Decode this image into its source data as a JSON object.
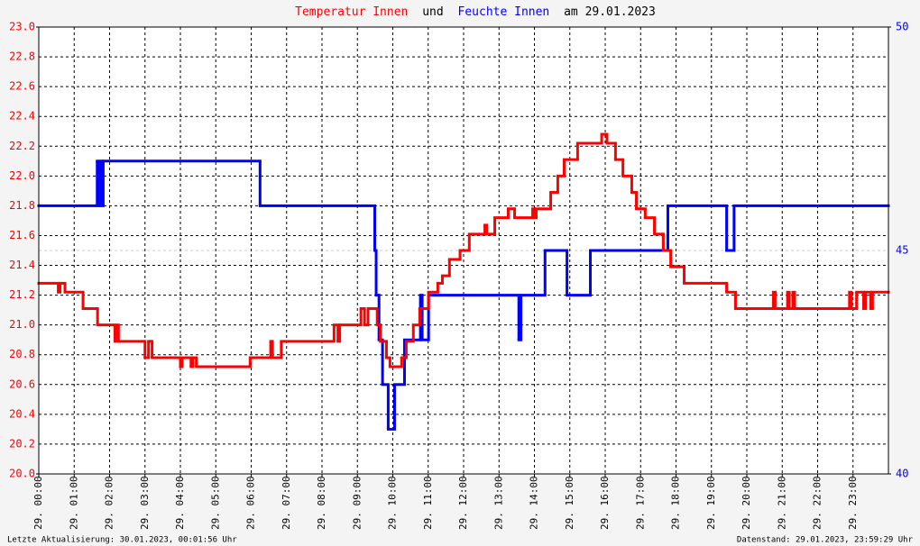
{
  "chart_data": {
    "type": "line",
    "step": "post",
    "title_joiner": "und",
    "title_date": "am 29.01.2023",
    "footer_left": "Letzte Aktualisierung: 30.01.2023, 00:01:56 Uhr",
    "footer_right": "Datenstand: 29.01.2023, 23:59:29 Uhr",
    "grid": true,
    "xlim": [
      0,
      24
    ],
    "xticks": [
      {
        "value": 0,
        "label": "29. 00:00"
      },
      {
        "value": 1,
        "label": "29. 01:00"
      },
      {
        "value": 2,
        "label": "29. 02:00"
      },
      {
        "value": 3,
        "label": "29. 03:00"
      },
      {
        "value": 4,
        "label": "29. 04:00"
      },
      {
        "value": 5,
        "label": "29. 05:00"
      },
      {
        "value": 6,
        "label": "29. 06:00"
      },
      {
        "value": 7,
        "label": "29. 07:00"
      },
      {
        "value": 8,
        "label": "29. 08:00"
      },
      {
        "value": 9,
        "label": "29. 09:00"
      },
      {
        "value": 10,
        "label": "29. 10:00"
      },
      {
        "value": 11,
        "label": "29. 11:00"
      },
      {
        "value": 12,
        "label": "29. 12:00"
      },
      {
        "value": 13,
        "label": "29. 13:00"
      },
      {
        "value": 14,
        "label": "29. 14:00"
      },
      {
        "value": 15,
        "label": "29. 15:00"
      },
      {
        "value": 16,
        "label": "29. 16:00"
      },
      {
        "value": 17,
        "label": "29. 17:00"
      },
      {
        "value": 18,
        "label": "29. 18:00"
      },
      {
        "value": 19,
        "label": "29. 19:00"
      },
      {
        "value": 20,
        "label": "29. 20:00"
      },
      {
        "value": 21,
        "label": "29. 21:00"
      },
      {
        "value": 22,
        "label": "29. 22:00"
      },
      {
        "value": 23,
        "label": "29. 23:00"
      }
    ],
    "ylim": [
      20,
      23
    ],
    "yticks": [
      {
        "value": 20,
        "label": "20.0"
      },
      20.2,
      20.4,
      20.6,
      20.8,
      {
        "value": 21,
        "label": "21.0"
      },
      21.2,
      21.4,
      21.6,
      21.8,
      {
        "value": 22,
        "label": "22.0"
      },
      22.2,
      22.4,
      22.6,
      22.8,
      {
        "value": 23,
        "label": "23.0"
      }
    ],
    "y2lim": [
      40,
      50
    ],
    "y2ticks": [
      40,
      45,
      50
    ],
    "series": [
      {
        "name": "Temperatur Innen",
        "color": "#ff0000",
        "x": [
          0,
          0.55,
          0.6,
          0.74,
          1.25,
          1.66,
          2.15,
          2.2,
          2.25,
          3.0,
          3.1,
          3.2,
          4.0,
          4.05,
          4.3,
          4.35,
          4.45,
          5.97,
          6.55,
          6.6,
          6.85,
          8.34,
          8.45,
          8.5,
          9.1,
          9.2,
          9.3,
          9.56,
          9.65,
          9.82,
          9.92,
          10.25,
          10.38,
          10.58,
          10.76,
          11.01,
          11.27,
          11.4,
          11.6,
          11.9,
          12.16,
          12.6,
          12.65,
          12.88,
          13.26,
          13.44,
          13.95,
          14.0,
          14.05,
          14.46,
          14.66,
          14.84,
          15.22,
          15.9,
          16.05,
          16.29,
          16.5,
          16.75,
          16.88,
          17.13,
          17.39,
          17.64,
          17.85,
          18.23,
          19.43,
          19.68,
          20.75,
          20.8,
          21.15,
          21.2,
          21.3,
          21.35,
          22.9,
          22.95,
          23.1,
          23.3,
          23.35,
          23.5,
          23.55
        ],
        "values": [
          21.28,
          21.22,
          21.28,
          21.22,
          21.11,
          21.0,
          20.89,
          21.0,
          20.89,
          20.78,
          20.89,
          20.78,
          20.72,
          20.78,
          20.72,
          20.78,
          20.72,
          20.78,
          20.89,
          20.78,
          20.89,
          21.0,
          20.89,
          21.0,
          21.11,
          21.0,
          21.11,
          21.0,
          20.89,
          20.78,
          20.72,
          20.78,
          20.89,
          21.0,
          21.11,
          21.22,
          21.28,
          21.33,
          21.44,
          21.5,
          21.61,
          21.67,
          21.61,
          21.72,
          21.78,
          21.72,
          21.78,
          21.72,
          21.78,
          21.89,
          22.0,
          22.11,
          22.22,
          22.28,
          22.22,
          22.11,
          22.0,
          21.89,
          21.78,
          21.72,
          21.61,
          21.5,
          21.39,
          21.28,
          21.22,
          21.11,
          21.22,
          21.11,
          21.22,
          21.11,
          21.22,
          21.11,
          21.22,
          21.11,
          21.22,
          21.11,
          21.22,
          21.11,
          21.22
        ]
      },
      {
        "name": "Feuchte Innen",
        "color": "#0000ff",
        "axis": "y2",
        "x": [
          0,
          1.65,
          1.7,
          1.75,
          1.8,
          1.82,
          6.25,
          9.49,
          9.53,
          9.61,
          9.71,
          9.87,
          10.05,
          10.33,
          10.78,
          10.83,
          11.01,
          13.56,
          13.62,
          14.3,
          14.92,
          15.58,
          17.77,
          19.43,
          19.64
        ],
        "values": [
          46,
          47,
          46,
          47,
          46,
          47,
          46,
          45,
          44,
          43,
          42,
          41,
          42,
          43,
          44,
          43,
          44,
          43,
          44,
          45,
          44,
          45,
          46,
          45,
          46
        ]
      }
    ]
  }
}
